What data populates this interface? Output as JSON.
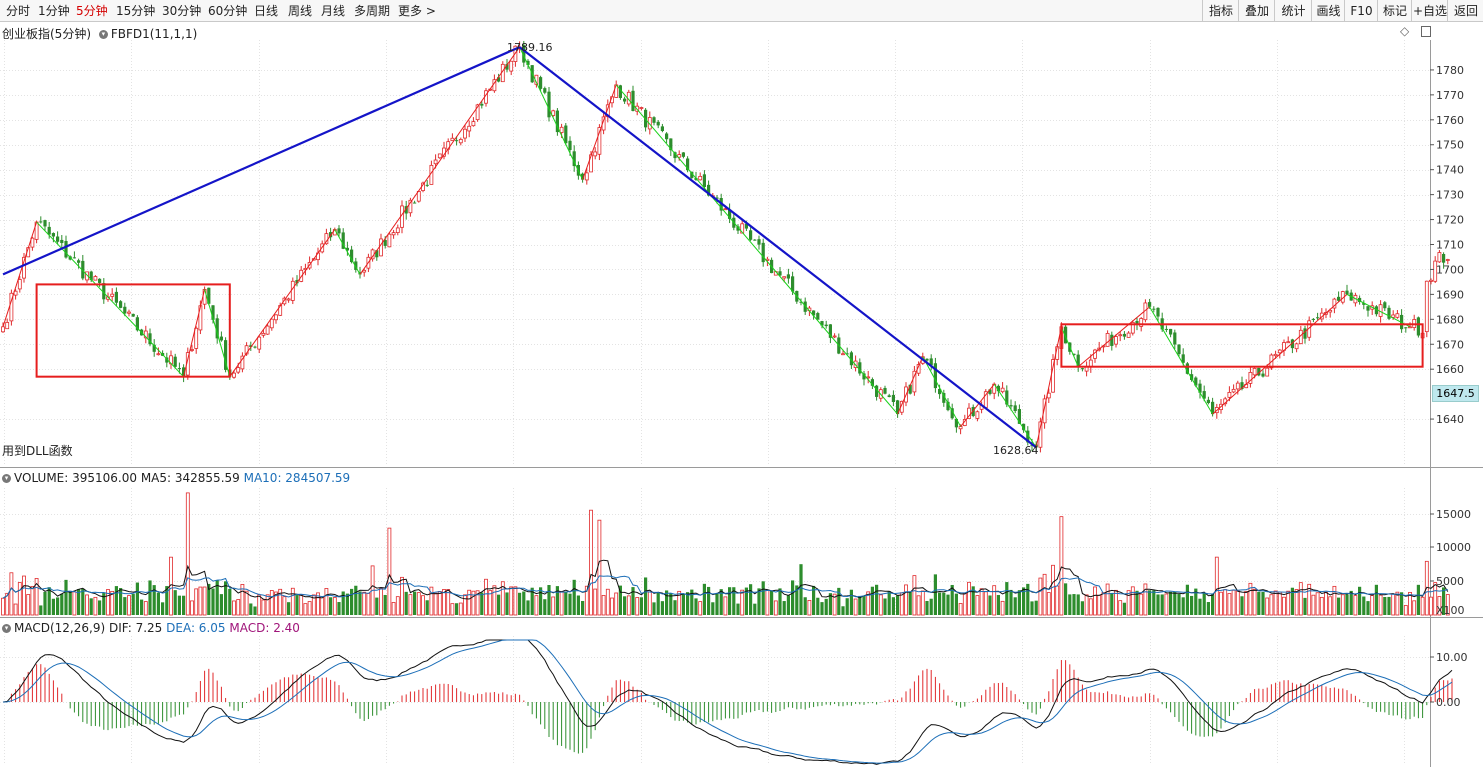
{
  "toolbar": {
    "periods": [
      "分时",
      "1分钟",
      "5分钟",
      "15分钟",
      "30分钟",
      "60分钟",
      "日线",
      "周线",
      "月线",
      "多周期",
      "更多 >"
    ],
    "active_period": "5分钟",
    "tools": [
      "指标",
      "叠加",
      "统计",
      "画线",
      "F10",
      "标记",
      "+自选",
      "返回"
    ]
  },
  "main_panel": {
    "title": "创业板指(5分钟)",
    "indicator": "FBFD1(11,1,1)",
    "footer": "用到DLL函数",
    "high_label": "1789.16",
    "low_label": "1628.64",
    "current_price": "1647.5",
    "ytick_labels": [
      "1780",
      "1770",
      "1760",
      "1750",
      "1740",
      "1730",
      "1720",
      "1710",
      "1700",
      "1690",
      "1680",
      "1670",
      "1660",
      "1640"
    ],
    "colors": {
      "up": "#e0292b",
      "down": "#2d8d2d",
      "zigzag_up": "#e61e1e",
      "zigzag_down": "#19d119",
      "trend": "#1414c8",
      "box": "#e61e1e"
    }
  },
  "volume_panel": {
    "label": "VOLUME: 395106.00",
    "ma5": "MA5: 342855.59",
    "ma10": "MA10: 284507.59",
    "unit": "X100",
    "ytick_labels": [
      "15000",
      "10000",
      "5000"
    ]
  },
  "macd_panel": {
    "label": "MACD(12,26,9)",
    "dif": "DIF: 7.25",
    "dea": "DEA: 6.05",
    "macd": "MACD: 2.40",
    "ytick_labels": [
      "10.00",
      "0.00"
    ]
  },
  "chart_data": {
    "type": "candlestick",
    "title": "创业板指(5分钟)",
    "y_range": [
      1628,
      1792
    ],
    "trend_lines": [
      {
        "from_index": 0,
        "from_value": 1698,
        "to_index": 123,
        "to_value": 1789.16
      },
      {
        "from_index": 123,
        "from_value": 1789.16,
        "to_index": 246,
        "to_value": 1628.64
      }
    ],
    "zigzag_pivots": [
      {
        "index": 0,
        "value": 1677
      },
      {
        "index": 8,
        "value": 1719
      },
      {
        "index": 43,
        "value": 1657
      },
      {
        "index": 48,
        "value": 1692
      },
      {
        "index": 54,
        "value": 1657
      },
      {
        "index": 79,
        "value": 1716
      },
      {
        "index": 85,
        "value": 1698
      },
      {
        "index": 123,
        "value": 1789.16
      },
      {
        "index": 138,
        "value": 1736
      },
      {
        "index": 146,
        "value": 1774
      },
      {
        "index": 213,
        "value": 1642
      },
      {
        "index": 219,
        "value": 1665
      },
      {
        "index": 228,
        "value": 1637
      },
      {
        "index": 236,
        "value": 1654
      },
      {
        "index": 246,
        "value": 1628.64
      },
      {
        "index": 252,
        "value": 1677
      },
      {
        "index": 256,
        "value": 1661
      },
      {
        "index": 273,
        "value": 1685
      },
      {
        "index": 288,
        "value": 1642
      },
      {
        "index": 320,
        "value": 1690
      },
      {
        "index": 335,
        "value": 1677
      }
    ],
    "boxes": [
      {
        "from_index": 8,
        "to_index": 54,
        "top": 1694,
        "bottom": 1657
      },
      {
        "from_index": 252,
        "to_index": 338,
        "top": 1678,
        "bottom": 1661
      }
    ],
    "last_candles": [
      1696,
      1699,
      1702,
      1704,
      1705,
      1706,
      1707
    ]
  }
}
